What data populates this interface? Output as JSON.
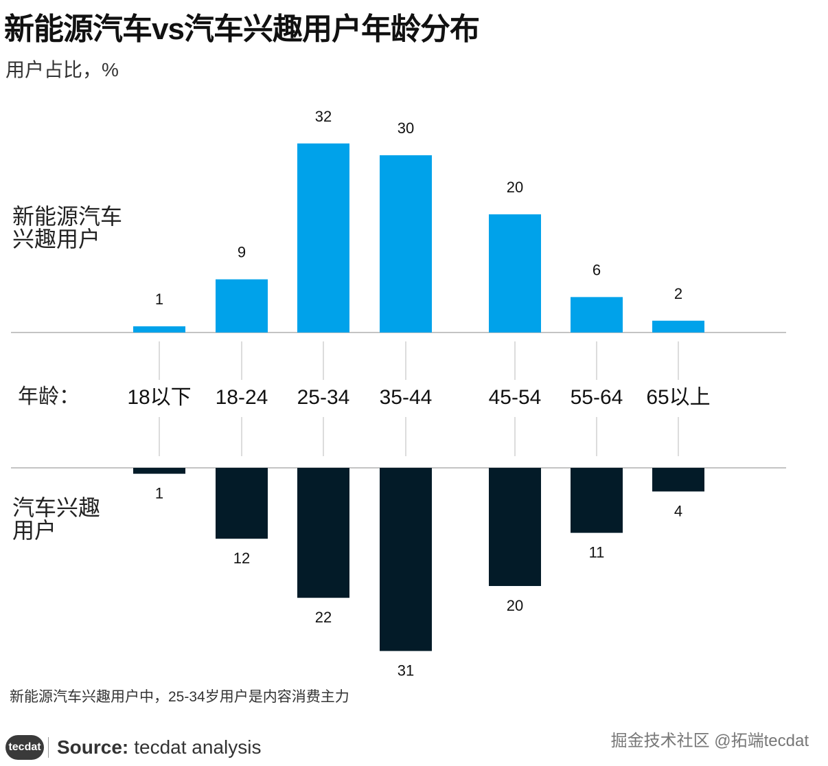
{
  "title": "新能源汽车vs汽车兴趣用户年龄分布",
  "subtitle": "用户占比，%",
  "note": "新能源汽车兴趣用户中，25-34岁用户是内容消费主力",
  "footer": {
    "logo_text": "tecdat",
    "source_label": "Source:",
    "source_text": "tecdat analysis"
  },
  "watermark": "掘金技术社区 @拓端tecdat",
  "colors": {
    "nev": "#00a2ea",
    "auto": "#031b28",
    "axis": "#c4c4c4",
    "text": "#1a1a1a"
  },
  "chart_data": {
    "type": "bar",
    "axis_title": "年龄：",
    "categories": [
      "18以下",
      "18-24",
      "25-34",
      "35-44",
      "45-54",
      "55-64",
      "65以上"
    ],
    "series": [
      {
        "name": "新能源汽车兴趣用户",
        "values": [
          1,
          9,
          32,
          30,
          20,
          6,
          2
        ]
      },
      {
        "name": "汽车兴趣用户",
        "values": [
          1,
          12,
          22,
          31,
          20,
          11,
          4
        ]
      }
    ]
  }
}
